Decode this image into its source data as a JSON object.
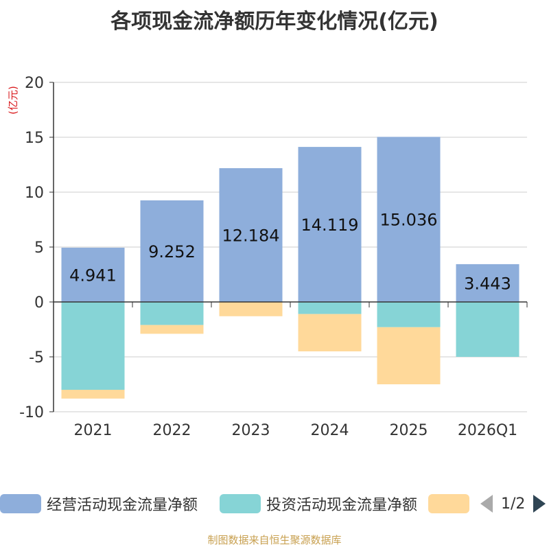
{
  "chart_data": {
    "type": "bar",
    "stacked": true,
    "title": "各项现金流净额历年变化情况(亿元)",
    "ylabel": "(亿元)",
    "xlabel": "",
    "ylim": [
      -10,
      20
    ],
    "yticks": [
      20,
      15,
      10,
      5,
      0,
      -5,
      -10
    ],
    "categories": [
      "2021",
      "2022",
      "2023",
      "2024",
      "2025",
      "2026Q1"
    ],
    "series": [
      {
        "name": "经营活动现金流量净额",
        "color": "#8eaedb",
        "values": [
          4.941,
          9.252,
          12.184,
          14.119,
          15.036,
          3.443
        ],
        "labels": [
          "4.941",
          "9.252",
          "12.184",
          "14.119",
          "15.036",
          "3.443"
        ]
      },
      {
        "name": "投资活动现金流量净额",
        "color": "#86d4d6",
        "values": [
          -8.0,
          -2.1,
          0,
          -1.1,
          -2.3,
          -5.0
        ]
      },
      {
        "name": "",
        "color": "#ffd99a",
        "values": [
          -0.8,
          -0.8,
          -1.3,
          -3.4,
          -5.2,
          0
        ]
      }
    ],
    "grid": true,
    "legend_position": "bottom"
  },
  "legend": {
    "page_indicator": "1/2"
  },
  "source_note": "制图数据来自恒生聚源数据库"
}
